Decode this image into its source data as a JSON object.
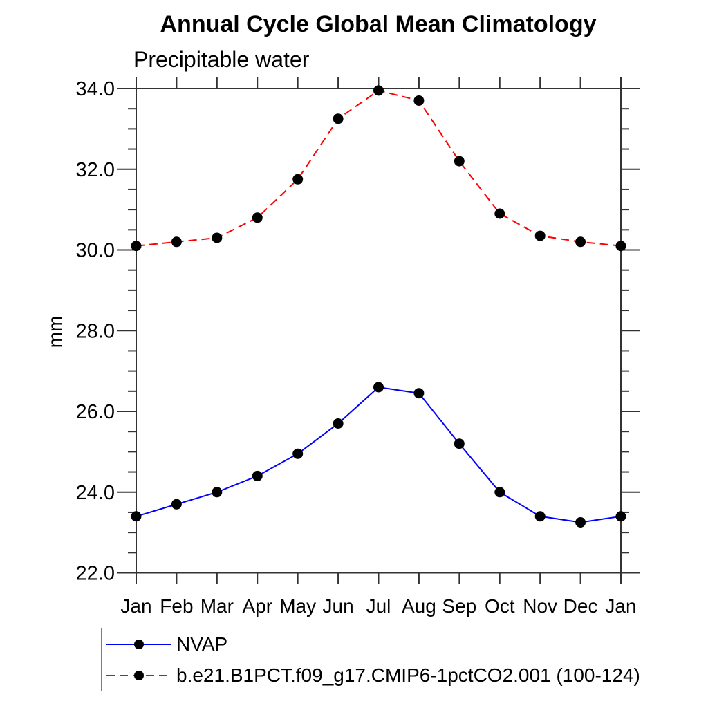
{
  "chart_data": {
    "type": "line",
    "title": "Annual Cycle Global Mean Climatology",
    "subtitle": "Precipitable water",
    "ylabel": "mm",
    "xlabel": "",
    "categories": [
      "Jan",
      "Feb",
      "Mar",
      "Apr",
      "May",
      "Jun",
      "Jul",
      "Aug",
      "Sep",
      "Oct",
      "Nov",
      "Dec",
      "Jan"
    ],
    "ylim": [
      22.0,
      34.0
    ],
    "ytick_major_interval": 2.0,
    "ytick_minor_interval": 0.5,
    "ytick_labels": [
      "22.0",
      "24.0",
      "26.0",
      "28.0",
      "30.0",
      "32.0",
      "34.0"
    ],
    "grid": false,
    "legend_position": "bottom-left-box",
    "axis_color": "#333333",
    "text_color": "#000000",
    "series": [
      {
        "name": "NVAP",
        "color": "#0000ff",
        "line_style": "solid",
        "marker": "filled-circle",
        "marker_color": "#000000",
        "values": [
          23.4,
          23.7,
          24.0,
          24.4,
          24.95,
          25.7,
          26.6,
          26.45,
          25.2,
          24.0,
          23.4,
          23.25,
          23.4
        ]
      },
      {
        "name": "b.e21.B1PCT.f09_g17.CMIP6-1pctCO2.001 (100-124)",
        "color": "#ff0000",
        "line_style": "dashed",
        "marker": "filled-circle",
        "marker_color": "#000000",
        "values": [
          30.1,
          30.2,
          30.3,
          30.8,
          31.75,
          33.25,
          33.95,
          33.7,
          32.2,
          30.9,
          30.35,
          30.2,
          30.1
        ]
      }
    ]
  }
}
